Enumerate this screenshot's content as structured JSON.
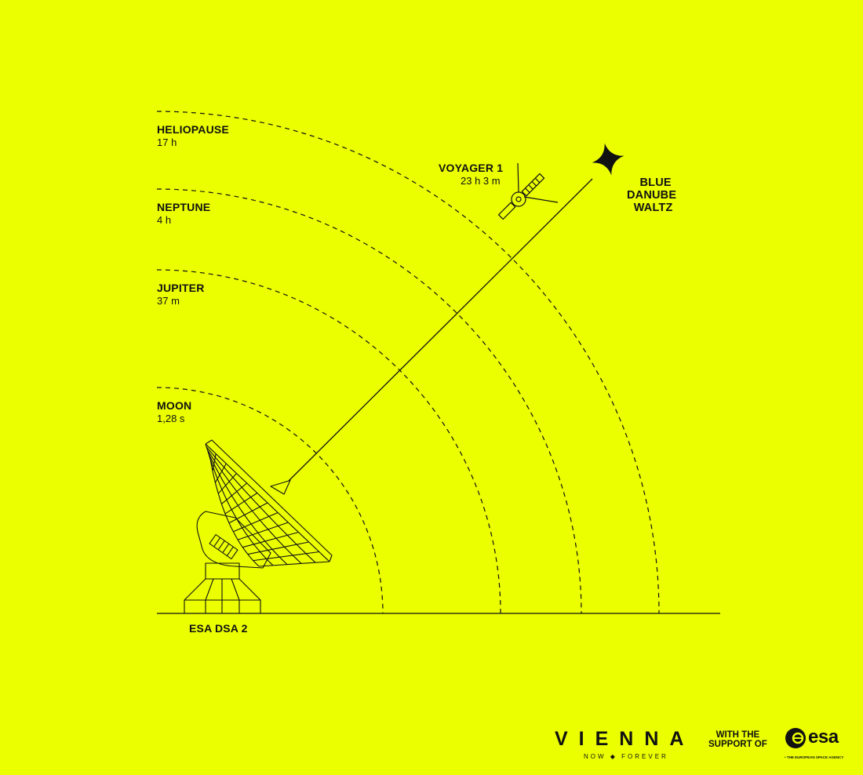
{
  "colors": {
    "background": "#ebff00",
    "ink": "#111111"
  },
  "orbits": [
    {
      "name": "HELIOPAUSE",
      "time": "17 h"
    },
    {
      "name": "NEPTUNE",
      "time": "4 h"
    },
    {
      "name": "JUPITER",
      "time": "37 m"
    },
    {
      "name": "MOON",
      "time": "1,28 s"
    }
  ],
  "spacecraft": {
    "name": "VOYAGER 1",
    "time": "23 h 3 m",
    "icon": "satellite-icon"
  },
  "target": {
    "lines": [
      "BLUE",
      "DANUBE",
      "WALTZ"
    ],
    "icon": "four-point-star-icon"
  },
  "antenna": {
    "name": "ESA DSA 2",
    "icon": "radio-dish-icon"
  },
  "footer": {
    "logo_text": "VIENNA",
    "tagline": "NOW ◆ FOREVER",
    "support": [
      "WITH THE",
      "SUPPORT OF"
    ],
    "partner": "esa",
    "partner_sub": "• THE EUROPEAN SPACE AGENCY"
  }
}
